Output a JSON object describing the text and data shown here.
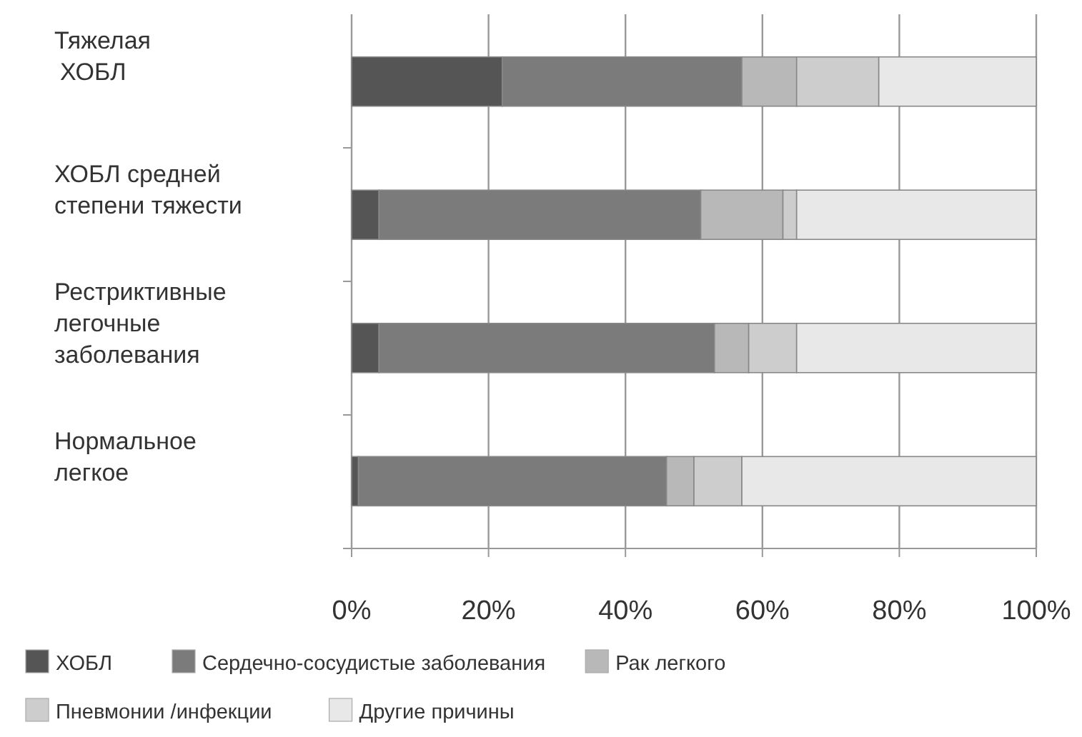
{
  "chart_data": {
    "type": "bar",
    "orientation": "horizontal",
    "stacked": true,
    "categories": [
      "Тяжелая\nХОБЛ",
      "ХОБЛ средней\nстепени тяжести",
      "Рестриктивные\nлегочные\nзаболевания",
      "Нормальное\nлегкое"
    ],
    "series": [
      {
        "name": "ХОБЛ",
        "color": "#555555",
        "values": [
          22,
          4,
          4,
          1
        ]
      },
      {
        "name": "Сердечно-сосудистые заболевания",
        "color": "#7b7b7b",
        "values": [
          35,
          47,
          49,
          45
        ]
      },
      {
        "name": "Рак легкого",
        "color": "#b8b8b8",
        "values": [
          8,
          12,
          5,
          4
        ]
      },
      {
        "name": "Пневмонии /инфекции",
        "color": "#cdcdcd",
        "values": [
          12,
          2,
          7,
          7
        ]
      },
      {
        "name": "Другие причины",
        "color": "#e8e8e8",
        "values": [
          23,
          35,
          35,
          43
        ]
      }
    ],
    "xlim": [
      0,
      100
    ],
    "xticks": [
      {
        "value": 0,
        "label": "0%"
      },
      {
        "value": 20,
        "label": "20%"
      },
      {
        "value": 40,
        "label": "40%"
      },
      {
        "value": 60,
        "label": "60%"
      },
      {
        "value": 80,
        "label": "80%"
      },
      {
        "value": 100,
        "label": "100%"
      }
    ],
    "grid": "x",
    "legend": "bottom"
  }
}
